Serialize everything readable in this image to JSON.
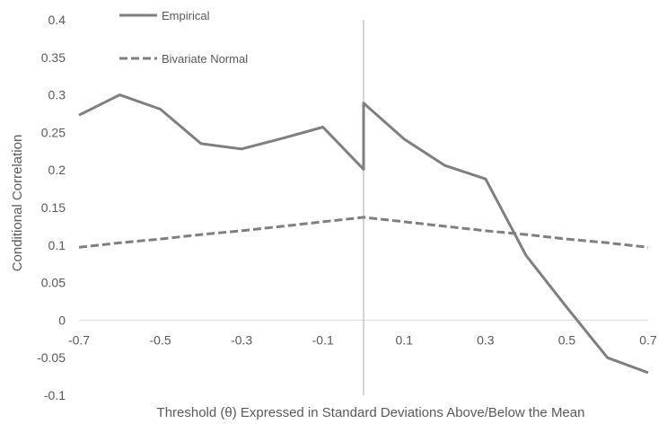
{
  "chart_data": {
    "type": "line",
    "xlabel": "Threshold (θ) Expressed in Standard Deviations Above/Below the Mean",
    "ylabel": "Conditional Correlation",
    "xlim": [
      -0.7,
      0.7
    ],
    "ylim": [
      -0.1,
      0.4
    ],
    "x_ticks": [
      "-0.7",
      "-0.5",
      "-0.3",
      "-0.1",
      "0.1",
      "0.3",
      "0.5",
      "0.7"
    ],
    "y_ticks": [
      "0.4",
      "0.35",
      "0.3",
      "0.25",
      "0.2",
      "0.15",
      "0.1",
      "0.05",
      "0",
      "-0.05",
      "-0.1"
    ],
    "grid": false,
    "legend_position": "top-left",
    "series": [
      {
        "name": "Empirical",
        "style": "solid",
        "color": "#7f7f7f",
        "points": [
          [
            -0.7,
            0.273
          ],
          [
            -0.6,
            0.3
          ],
          [
            -0.5,
            0.281
          ],
          [
            -0.4,
            0.235
          ],
          [
            -0.3,
            0.228
          ],
          [
            -0.2,
            0.242
          ],
          [
            -0.1,
            0.257
          ],
          [
            0.0,
            0.201
          ],
          [
            0.0,
            0.289
          ],
          [
            0.1,
            0.241
          ],
          [
            0.2,
            0.206
          ],
          [
            0.3,
            0.188
          ],
          [
            0.4,
            0.086
          ],
          [
            0.5,
            0.017
          ],
          [
            0.6,
            -0.05
          ],
          [
            0.7,
            -0.07
          ]
        ]
      },
      {
        "name": "Bivariate Normal",
        "style": "dashed",
        "color": "#7f7f7f",
        "points": [
          [
            -0.7,
            0.097
          ],
          [
            -0.6,
            0.103
          ],
          [
            -0.5,
            0.108
          ],
          [
            -0.4,
            0.114
          ],
          [
            -0.3,
            0.119
          ],
          [
            -0.2,
            0.125
          ],
          [
            -0.1,
            0.131
          ],
          [
            0.0,
            0.137
          ],
          [
            0.1,
            0.131
          ],
          [
            0.2,
            0.125
          ],
          [
            0.3,
            0.119
          ],
          [
            0.4,
            0.114
          ],
          [
            0.5,
            0.108
          ],
          [
            0.6,
            0.103
          ],
          [
            0.7,
            0.097
          ]
        ]
      }
    ]
  }
}
